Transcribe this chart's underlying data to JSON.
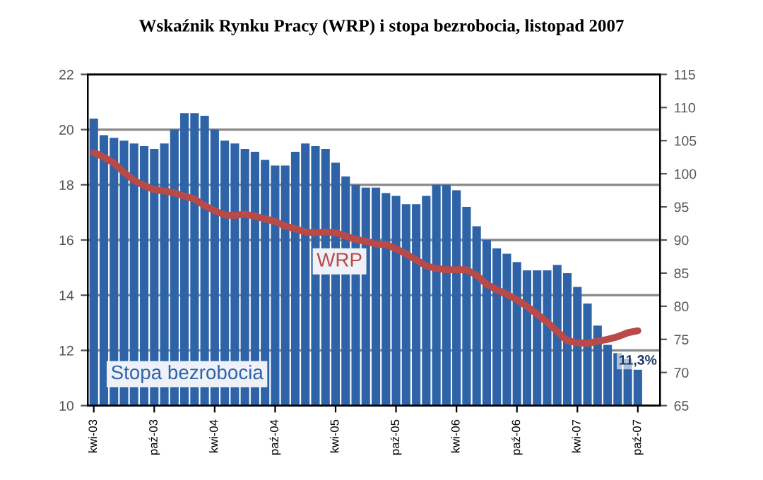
{
  "chart_data": {
    "type": "bar",
    "title": "Wskaźnik Rynku Pracy (WRP) i stopa bezrobocia, listopad 2007",
    "categories": [
      "kwi-03",
      null,
      null,
      null,
      null,
      null,
      "paź-03",
      null,
      null,
      null,
      null,
      null,
      "kwi-04",
      null,
      null,
      null,
      null,
      null,
      "paź-04",
      null,
      null,
      null,
      null,
      null,
      "kwi-05",
      null,
      null,
      null,
      null,
      null,
      "paź-05",
      null,
      null,
      null,
      null,
      null,
      "kwi-06",
      null,
      null,
      null,
      null,
      null,
      "paź-06",
      null,
      null,
      null,
      null,
      null,
      "kwi-07",
      null,
      null,
      null,
      null,
      null,
      "paź-07"
    ],
    "series": [
      {
        "name": "Stopa bezrobocia",
        "color": "#2f63a8",
        "values": [
          20.4,
          19.8,
          19.7,
          19.6,
          19.5,
          19.4,
          19.3,
          19.5,
          20.0,
          20.6,
          20.6,
          20.5,
          20.0,
          19.6,
          19.5,
          19.3,
          19.2,
          18.9,
          18.7,
          18.7,
          19.2,
          19.5,
          19.4,
          19.3,
          18.8,
          18.3,
          18.0,
          17.9,
          17.9,
          17.7,
          17.6,
          17.3,
          17.3,
          17.6,
          18.0,
          18.0,
          17.8,
          17.2,
          16.5,
          16.0,
          15.7,
          15.5,
          15.2,
          14.9,
          14.9,
          14.9,
          15.1,
          14.8,
          14.3,
          13.7,
          12.9,
          12.2,
          11.9,
          11.7,
          11.3
        ],
        "value_labels": [
          null,
          null,
          null,
          null,
          null,
          null,
          null,
          null,
          null,
          null,
          null,
          null,
          null,
          null,
          null,
          null,
          null,
          null,
          null,
          null,
          null,
          null,
          null,
          null,
          null,
          null,
          null,
          null,
          null,
          null,
          null,
          null,
          null,
          null,
          null,
          null,
          null,
          null,
          null,
          null,
          null,
          null,
          null,
          null,
          null,
          null,
          null,
          null,
          null,
          null,
          null,
          null,
          null,
          null,
          "11,3%"
        ]
      },
      {
        "name": "WRP",
        "type": "line",
        "axis": "y2",
        "color": "#b94a48",
        "values": [
          103.2,
          102.5,
          101.6,
          100.2,
          99.0,
          98.2,
          97.6,
          97.4,
          97.1,
          96.6,
          96.2,
          95.2,
          94.4,
          93.8,
          93.7,
          93.9,
          93.6,
          93.2,
          92.8,
          92.1,
          91.7,
          91.2,
          91.1,
          91.2,
          91.1,
          90.6,
          90.1,
          89.8,
          89.4,
          89.3,
          88.7,
          87.9,
          87.0,
          86.1,
          85.7,
          85.5,
          85.5,
          85.5,
          84.7,
          83.3,
          82.5,
          81.8,
          81.0,
          80.0,
          78.8,
          77.6,
          76.2,
          74.8,
          74.5,
          74.4,
          74.7,
          75.0,
          75.4,
          76.0,
          76.3
        ]
      }
    ],
    "ylim": [
      10,
      22
    ],
    "yticks": [
      10,
      12,
      14,
      16,
      18,
      20,
      22
    ],
    "y2lim": [
      65,
      115
    ],
    "y2ticks": [
      65,
      70,
      75,
      80,
      85,
      90,
      95,
      100,
      105,
      110,
      115
    ],
    "grid": "y",
    "legend": false
  }
}
